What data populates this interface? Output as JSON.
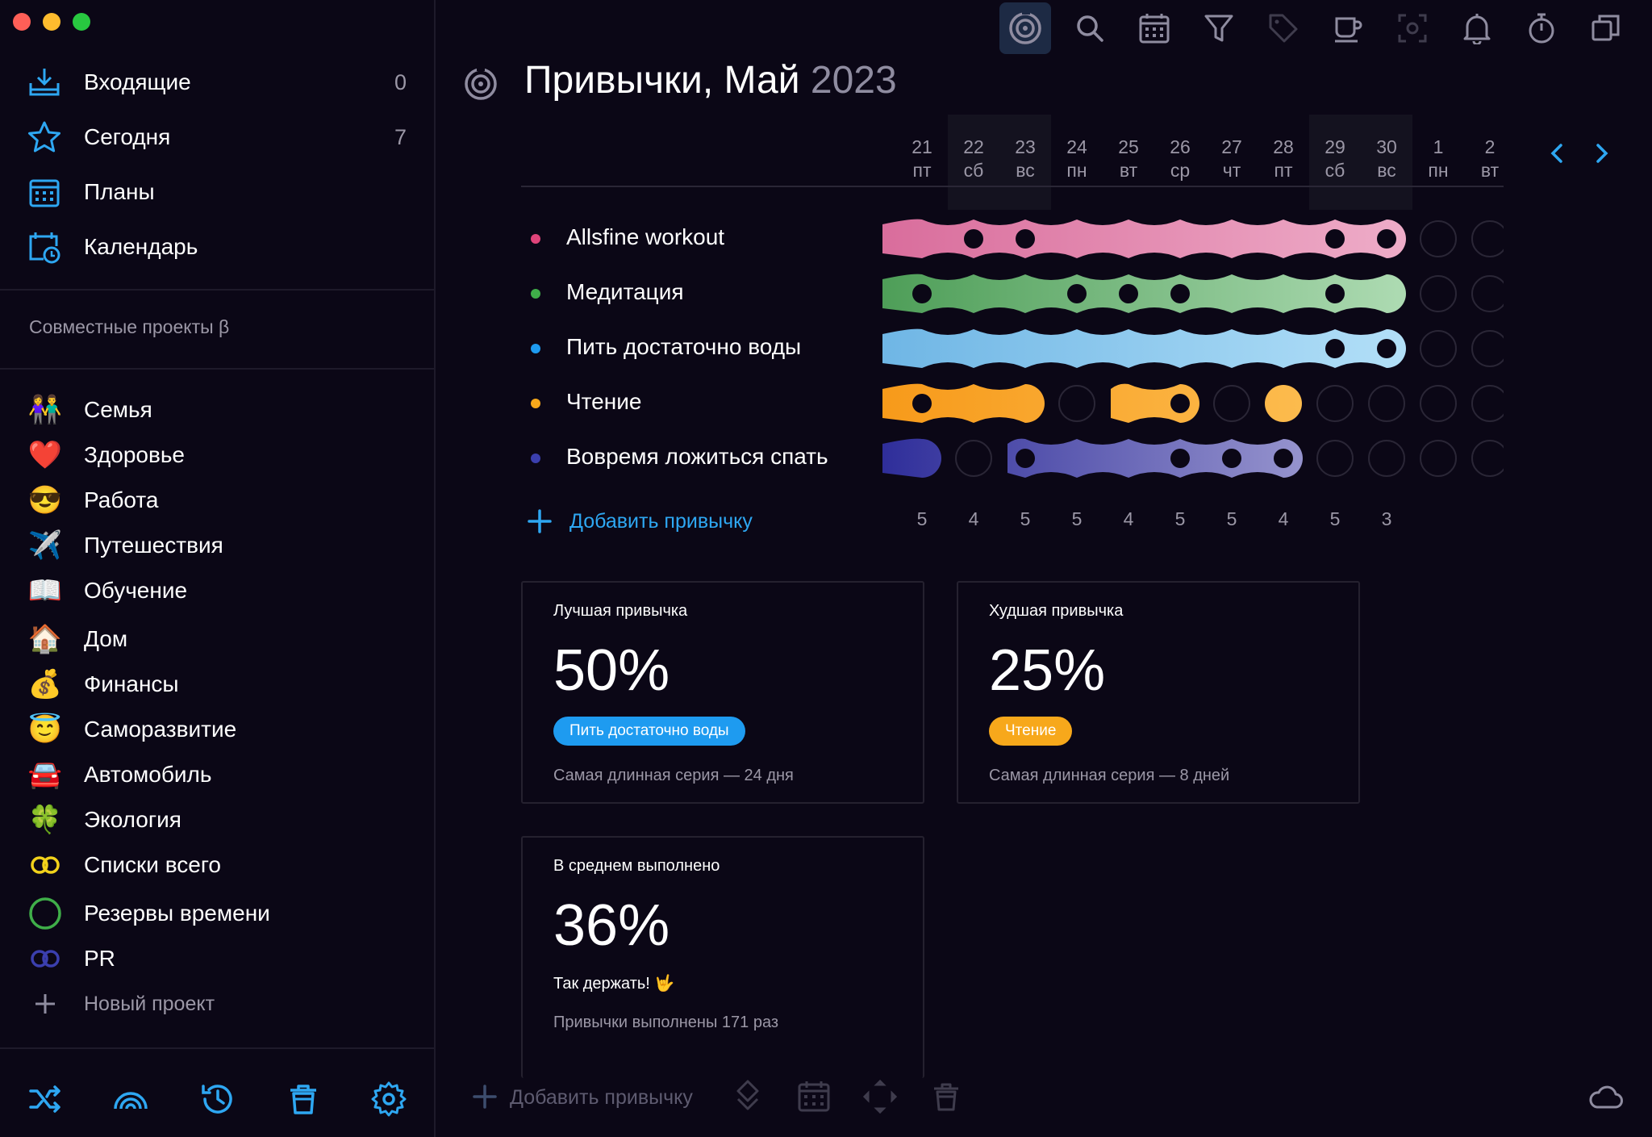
{
  "sidebar": {
    "nav": [
      {
        "label": "Входящие",
        "count": "0",
        "icon": "inbox-icon"
      },
      {
        "label": "Сегодня",
        "count": "7",
        "icon": "star-icon"
      },
      {
        "label": "Планы",
        "count": "",
        "icon": "plans-calendar-icon"
      },
      {
        "label": "Календарь",
        "count": "",
        "icon": "calendar-clock-icon"
      }
    ],
    "section_title": "Совместные проекты β",
    "projects": [
      {
        "label": "Семья",
        "icon": "👫"
      },
      {
        "label": "Здоровье",
        "icon": "❤️"
      },
      {
        "label": "Работа",
        "icon": "😎"
      },
      {
        "label": "Путешествия",
        "icon": "✈️"
      },
      {
        "label": "Обучение",
        "icon": "📖"
      },
      {
        "label": "Дом",
        "icon": "🏠"
      },
      {
        "label": "Финансы",
        "icon": "💰"
      },
      {
        "label": "Саморазвитие",
        "icon": "😇"
      },
      {
        "label": "Автомобиль",
        "icon": "🚘"
      },
      {
        "label": "Экология",
        "icon": "🍀"
      },
      {
        "label": "Списки всего",
        "icon": "yellow-rings-icon"
      },
      {
        "label": "Резервы времени",
        "icon": "green-circle-icon"
      },
      {
        "label": "PR",
        "icon": "blue-rings-icon"
      }
    ],
    "new_project": "Новый проект"
  },
  "page": {
    "title_main": "Привычки, Май",
    "title_year": "2023"
  },
  "days": [
    {
      "num": "21",
      "wd": "пт",
      "weekend": false
    },
    {
      "num": "22",
      "wd": "сб",
      "weekend": true
    },
    {
      "num": "23",
      "wd": "вс",
      "weekend": true
    },
    {
      "num": "24",
      "wd": "пн",
      "weekend": false
    },
    {
      "num": "25",
      "wd": "вт",
      "weekend": false
    },
    {
      "num": "26",
      "wd": "ср",
      "weekend": false
    },
    {
      "num": "27",
      "wd": "чт",
      "weekend": false
    },
    {
      "num": "28",
      "wd": "пт",
      "weekend": false
    },
    {
      "num": "29",
      "wd": "сб",
      "weekend": true
    },
    {
      "num": "30",
      "wd": "вс",
      "weekend": true
    },
    {
      "num": "1",
      "wd": "пн",
      "weekend": false
    },
    {
      "num": "2",
      "wd": "вт",
      "weekend": false
    }
  ],
  "habits": [
    {
      "name": "Allsfine workout",
      "color": "#e0447a",
      "colors": [
        "#d96d9c",
        "#f2b8d0"
      ],
      "days": [
        1,
        0,
        0,
        1,
        1,
        1,
        1,
        1,
        0,
        0,
        -1,
        -1
      ]
    },
    {
      "name": "Медитация",
      "color": "#3fae49",
      "colors": [
        "#4e9e58",
        "#bfe6c3"
      ],
      "days": [
        0,
        1,
        1,
        0,
        0,
        0,
        1,
        1,
        0,
        1,
        -1,
        -1
      ]
    },
    {
      "name": "Пить достаточно воды",
      "color": "#1e9bf0",
      "colors": [
        "#6fb6e5",
        "#bfe7fb"
      ],
      "days": [
        1,
        1,
        1,
        1,
        1,
        1,
        1,
        1,
        0,
        0,
        -1,
        -1
      ]
    },
    {
      "name": "Чтение",
      "color": "#f7a81b",
      "colors": [
        "#f79a1a",
        "#ffcb66"
      ],
      "days": [
        0,
        1,
        1,
        -1,
        1,
        0,
        -1,
        2,
        -1,
        -1,
        -1,
        -1
      ]
    },
    {
      "name": "Вовремя ложиться спать",
      "color": "#3b3fae",
      "colors": [
        "#2f2e9a",
        "#c6c3e6"
      ],
      "days": [
        1,
        -1,
        0,
        1,
        1,
        0,
        0,
        0,
        -1,
        -1,
        -1,
        -1
      ]
    }
  ],
  "add_habit": "Добавить привычку",
  "daily_counts": [
    "5",
    "4",
    "5",
    "5",
    "4",
    "5",
    "5",
    "4",
    "5",
    "3"
  ],
  "cards": {
    "best": {
      "title": "Лучшая привычка",
      "percent": "50%",
      "chip": "Пить достаточно воды",
      "chip_color": "#1e9bf0",
      "sub": "Самая длинная серия — 24 дня"
    },
    "worst": {
      "title": "Худшая привычка",
      "percent": "25%",
      "chip": "Чтение",
      "chip_color": "#f7a81b",
      "sub": "Самая длинная серия — 8 дней"
    },
    "average": {
      "title": "В среднем выполнено",
      "percent": "36%",
      "note": "Так держать! 🤟",
      "sub": "Привычки выполнены 171 раз"
    }
  },
  "bottom": {
    "add_label": "Добавить привычку"
  },
  "colors": {
    "accent": "#2ea7f2",
    "bg": "#0b0716"
  }
}
